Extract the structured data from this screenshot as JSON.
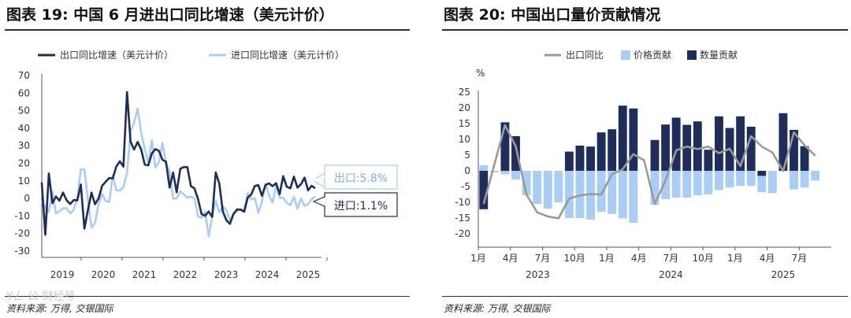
{
  "left": {
    "title": "图表 19: 中国 6 月进出口同比增速（美元计价）",
    "source": "资料来源: 万得, 交银国际",
    "watermark": "Yㄥ 公 财经号",
    "callout_export": "出口:5.8%",
    "callout_import": "进口:1.1%"
  },
  "right": {
    "title": "图表 20: 中国出口量价贡献情况",
    "source": "资料来源: 万得, 交银国际",
    "unit": "%"
  },
  "colors": {
    "navy": "#1f2d5a",
    "light_blue": "#a9cdf4",
    "grey": "#9a9a9a"
  },
  "chart_data": [
    {
      "type": "line",
      "ylim": [
        -30,
        70
      ],
      "yticks": [
        -30,
        -20,
        -10,
        0,
        10,
        20,
        30,
        40,
        50,
        60,
        70
      ],
      "xtick_labels": [
        "2019",
        "2020",
        "2021",
        "2022",
        "2023",
        "2024",
        "2025"
      ],
      "legend_position": "top",
      "series": [
        {
          "name": "出口同比增速（美元计价）",
          "values": [
            9.1,
            -20.7,
            14.2,
            -2.7,
            1.1,
            -1.3,
            3.3,
            -1,
            -3.2,
            -0.9,
            -1.1,
            7.9,
            -17.2,
            -6.6,
            3.3,
            -3.3,
            0,
            7.2,
            9.5,
            11.6,
            11.4,
            18.2,
            21.1,
            18.1,
            60.6,
            32.3,
            27.9,
            32.2,
            27.9,
            19.3,
            18.9,
            25.6,
            28.1,
            27.1,
            22,
            20.9,
            6.2,
            14.7,
            3.5,
            16.9,
            17.9,
            17.8,
            7,
            5.7,
            -0.3,
            -8.9,
            -9.9,
            -7.5,
            -10.5,
            14.8,
            8.5,
            -7.5,
            -12.4,
            -14.5,
            -8.8,
            -6.2,
            -6.4,
            -7.6,
            0.5,
            2.3,
            7.1,
            7.6,
            1.5,
            7.6,
            8.6,
            7,
            8.7,
            2.4,
            12.7,
            6.7,
            5.8,
            12.4,
            6.2,
            8.1,
            11.9,
            4.6,
            7.2,
            5.8
          ]
        },
        {
          "name": "进口同比增速（美元计价）",
          "values": [
            -1.5,
            -5.2,
            -7.6,
            4,
            -8.5,
            -7.3,
            -5.6,
            -5.6,
            -8.5,
            -6.4,
            0.3,
            16.5,
            16.5,
            -0.7,
            -16.7,
            -13.8,
            -3.3,
            2.7,
            -1.4,
            -2.1,
            13.2,
            4.7,
            4.5,
            6.5,
            14.5,
            38.1,
            43.1,
            51.1,
            37.4,
            28.1,
            20.4,
            33.1,
            17.6,
            20.6,
            31.7,
            19.5,
            15.5,
            -0.1,
            0,
            4.1,
            2.3,
            0.3,
            1,
            0,
            -10.2,
            -10.9,
            -7.6,
            -21.4,
            -10.2,
            -1.4,
            -7.9,
            -4.5,
            -6.8,
            -12.4,
            -8.9,
            -7.2,
            -6.2,
            -6.4,
            3,
            -0.6,
            0.2,
            -8.2,
            -1.9,
            8.4,
            1.8,
            -2.3,
            7.2,
            0.5,
            0.3,
            -2.3,
            -3.9,
            1,
            -5.9,
            -0.1,
            -4.2,
            -3.4,
            -0.4,
            1.1
          ]
        }
      ]
    },
    {
      "type": "bar",
      "ylim": [
        -20,
        25
      ],
      "yticks": [
        -20,
        -15,
        -10,
        -5,
        0,
        5,
        10,
        15,
        20,
        25
      ],
      "xtick_labels": [
        "1月",
        "4月",
        "7月",
        "10月",
        "1月",
        "4月",
        "7月",
        "10月",
        "1月",
        "4月",
        "7月"
      ],
      "year_labels": [
        "2023",
        "2024",
        "2025"
      ],
      "legend_position": "top",
      "series": [
        {
          "name": "价格贡献",
          "values": [
            1.8,
            -0.5,
            -1.1,
            -2.8,
            -7.8,
            -10.5,
            -12,
            -10,
            -15,
            -15,
            -15.5,
            -13,
            -13.7,
            -15.1,
            -16.5,
            0,
            -10.8,
            -9,
            -8.5,
            -8.5,
            -7.8,
            -7.5,
            -6.1,
            -5.3,
            -4.8,
            -4.8,
            -6.8,
            -7.1,
            -0.1,
            -5.9,
            -5.3,
            -3.1
          ]
        },
        {
          "name": "数量贡献",
          "values": [
            -12.2,
            0,
            15.4,
            11,
            0,
            0,
            0,
            0,
            6.1,
            8,
            7.7,
            12.2,
            13.2,
            20.7,
            19.8,
            0,
            9.8,
            14.7,
            16.9,
            14.6,
            15.7,
            6.7,
            17.3,
            13.6,
            17.3,
            14,
            -1.6,
            0,
            18.3,
            13,
            7.8,
            0
          ]
        },
        {
          "name": "出口同比",
          "type": "line",
          "values": [
            -10.5,
            2,
            14.5,
            7.8,
            -7.5,
            -13.2,
            -14.5,
            -15.1,
            -8.8,
            -7.8,
            -7.4,
            -7.5,
            -1.1,
            0.5,
            5.3,
            3.3,
            -10.5,
            -3.1,
            6.5,
            7.7,
            6.9,
            7.7,
            5.6,
            7,
            1.5,
            11,
            7.7,
            5.8,
            -0.1,
            12.2,
            8.1,
            4.8
          ]
        }
      ]
    }
  ]
}
